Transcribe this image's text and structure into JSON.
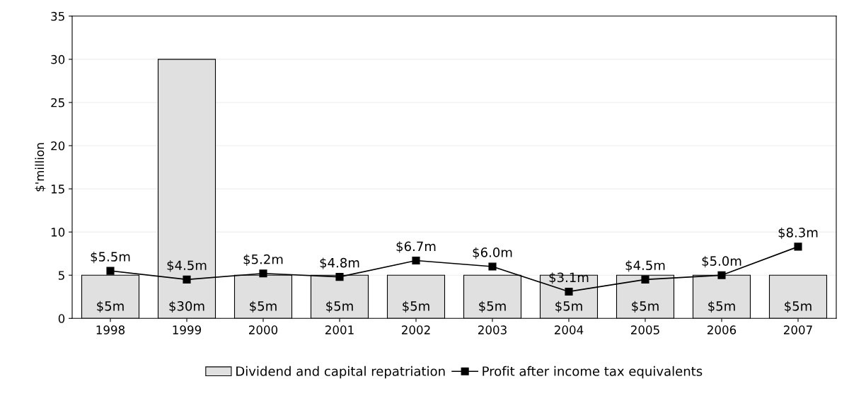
{
  "chart_data": {
    "type": "bar",
    "ylabel": "$'million",
    "categories": [
      "1998",
      "1999",
      "2000",
      "2001",
      "2002",
      "2003",
      "2004",
      "2005",
      "2006",
      "2007"
    ],
    "series": [
      {
        "name": "Dividend and capital repatriation",
        "color": "#e0e0e0",
        "values": [
          5,
          30,
          5,
          5,
          5,
          5,
          5,
          5,
          5,
          5
        ],
        "value_labels": [
          "$5m",
          "$30m",
          "$5m",
          "$5m",
          "$5m",
          "$5m",
          "$5m",
          "$5m",
          "$5m",
          "$5m"
        ]
      },
      {
        "name": "Profit after income tax equivalents",
        "type": "line",
        "color": "#000000",
        "marker": "square",
        "values": [
          5.5,
          4.5,
          5.2,
          4.8,
          6.7,
          6.0,
          3.1,
          4.5,
          5.0,
          8.3
        ],
        "value_labels": [
          "$5.5m",
          "$4.5m",
          "$5.2m",
          "$4.8m",
          "$6.7m",
          "$6.0m",
          "$3.1m",
          "$4.5m",
          "$5.0m",
          "$8.3m"
        ]
      }
    ],
    "ylim": [
      0,
      35
    ],
    "yticks": [
      0,
      5,
      10,
      15,
      20,
      25,
      30,
      35
    ],
    "grid": "y",
    "legend": "bottom"
  }
}
